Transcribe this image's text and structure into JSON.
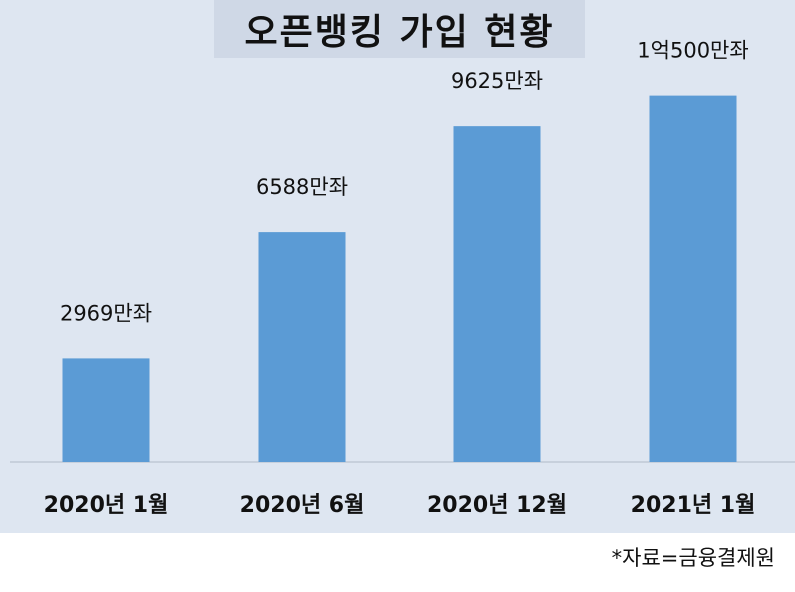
{
  "chart_data": {
    "type": "bar",
    "title": "오픈뱅킹 가입 현황",
    "categories": [
      "2020년 1월",
      "2020년 6월",
      "2020년 12월",
      "2021년 1월"
    ],
    "values": [
      2969,
      6588,
      9625,
      10500
    ],
    "data_labels": [
      "2969만좌",
      "6588만좌",
      "9625만좌",
      "1억500만좌"
    ],
    "unit": "만좌",
    "xlabel": "",
    "ylabel": "",
    "ylim": [
      0,
      11750
    ],
    "grid": false,
    "legend": "none",
    "bar_color": "#5b9bd5"
  },
  "source_note": "*자료=금융결제원",
  "colors": {
    "chart_background": "#dee6f1",
    "title_background": "#cfd8e6",
    "bar": "#5b9bd5",
    "axis_line": "#bfc9d6"
  }
}
